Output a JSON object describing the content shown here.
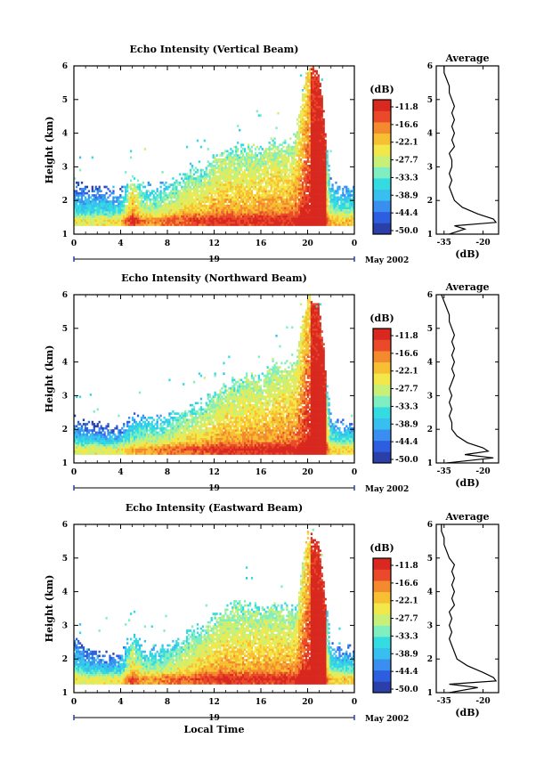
{
  "colors": [
    "#2a3fa8",
    "#2e5ee0",
    "#3a8ef0",
    "#37c0ef",
    "#34dbe0",
    "#7feec0",
    "#c8f078",
    "#f3e84a",
    "#f7c033",
    "#f38a2e",
    "#eb4a2a",
    "#d8281f"
  ],
  "colorbar": {
    "unit": "(dB)",
    "ticks": [
      "-11.8",
      "-16.6",
      "-22.1",
      "-27.7",
      "-33.3",
      "-38.9",
      "-44.4",
      "-50.0"
    ],
    "range": [
      -50.0,
      -11.8
    ]
  },
  "date_label": "May 2002",
  "day_label": "19",
  "xlabel_bottom": "Local Time",
  "ylabel": "Height (km)",
  "x_ticks": [
    "0",
    "4",
    "8",
    "12",
    "16",
    "20",
    "0"
  ],
  "y_ticks": [
    "1",
    "2",
    "3",
    "4",
    "5",
    "6"
  ],
  "profile_title": "Average",
  "profile_xlabel": "(dB)",
  "profile_x_ticks": [
    "-35",
    "-20"
  ],
  "chart_data": [
    {
      "type": "heatmap",
      "title": "Echo Intensity (Vertical Beam)",
      "xlabel": "",
      "ylabel": "Height (km)",
      "xlim": [
        0,
        24
      ],
      "ylim": [
        1,
        6
      ],
      "x": [
        0,
        1,
        2,
        3,
        4,
        5,
        6,
        7,
        8,
        9,
        10,
        11,
        12,
        13,
        14,
        15,
        16,
        17,
        18,
        19,
        20,
        21,
        22,
        23
      ],
      "echo_top_km": [
        2.4,
        2.3,
        2.3,
        2.2,
        2.2,
        2.5,
        2.4,
        2.3,
        2.4,
        2.6,
        2.9,
        2.8,
        3.2,
        3.4,
        3.5,
        3.6,
        3.4,
        3.8,
        3.6,
        3.9,
        6.0,
        5.8,
        2.4,
        2.3
      ],
      "peak_dB": [
        -30,
        -31,
        -30,
        -30,
        -29,
        -16,
        -24,
        -24,
        -22,
        -21,
        -20,
        -20,
        -18,
        -18,
        -19,
        -19,
        -18,
        -18,
        -18,
        -17,
        -11.8,
        -12,
        -26,
        -27
      ],
      "profile": {
        "title": "Average",
        "xlabel": "(dB)",
        "xlim": [
          -38,
          -14
        ],
        "heights_km": [
          1.0,
          1.15,
          1.25,
          1.35,
          1.45,
          1.6,
          1.8,
          2.0,
          2.2,
          2.4,
          2.6,
          2.8,
          3.0,
          3.2,
          3.4,
          3.6,
          3.8,
          4.0,
          4.2,
          4.4,
          4.6,
          4.8,
          5.0,
          5.2,
          5.4,
          5.6,
          5.8,
          6.0
        ],
        "values_dB": [
          -33,
          -27,
          -31,
          -15,
          -16,
          -22,
          -28,
          -31,
          -32,
          -33,
          -32,
          -33,
          -32,
          -32,
          -33,
          -31,
          -32,
          -31,
          -32,
          -31,
          -32,
          -31,
          -32,
          -33,
          -33,
          -34,
          -35,
          -35
        ]
      }
    },
    {
      "type": "heatmap",
      "title": "Echo Intensity (Northward Beam)",
      "xlabel": "",
      "ylabel": "Height (km)",
      "xlim": [
        0,
        24
      ],
      "ylim": [
        1,
        6
      ],
      "x": [
        0,
        1,
        2,
        3,
        4,
        5,
        6,
        7,
        8,
        9,
        10,
        11,
        12,
        13,
        14,
        15,
        16,
        17,
        18,
        19,
        20,
        21,
        22,
        23
      ],
      "echo_top_km": [
        2.2,
        2.1,
        2.0,
        2.0,
        2.0,
        2.3,
        2.3,
        2.2,
        2.3,
        2.5,
        2.6,
        2.7,
        3.0,
        3.2,
        3.4,
        3.6,
        3.5,
        3.9,
        3.8,
        4.0,
        6.0,
        5.7,
        2.2,
        2.1
      ],
      "peak_dB": [
        -30,
        -31,
        -30,
        -31,
        -30,
        -26,
        -25,
        -24,
        -23,
        -22,
        -21,
        -20,
        -19,
        -18,
        -19,
        -18,
        -18,
        -18,
        -17,
        -17,
        -11.8,
        -12,
        -27,
        -28
      ],
      "profile": {
        "title": "Average",
        "xlabel": "(dB)",
        "xlim": [
          -38,
          -14
        ],
        "heights_km": [
          1.0,
          1.15,
          1.25,
          1.35,
          1.45,
          1.6,
          1.8,
          2.0,
          2.2,
          2.4,
          2.6,
          2.8,
          3.0,
          3.2,
          3.4,
          3.6,
          3.8,
          4.0,
          4.2,
          4.4,
          4.6,
          4.8,
          5.0,
          5.2,
          5.4,
          5.6,
          5.8,
          6.0
        ],
        "values_dB": [
          -34,
          -16,
          -27,
          -18,
          -20,
          -26,
          -30,
          -32,
          -32,
          -33,
          -32,
          -33,
          -32,
          -33,
          -32,
          -31,
          -32,
          -31,
          -32,
          -31,
          -32,
          -31,
          -32,
          -33,
          -33,
          -34,
          -35,
          -36
        ]
      }
    },
    {
      "type": "heatmap",
      "title": "Echo Intensity (Eastward Beam)",
      "xlabel": "Local Time",
      "ylabel": "Height (km)",
      "xlim": [
        0,
        24
      ],
      "ylim": [
        1,
        6
      ],
      "x": [
        0,
        1,
        2,
        3,
        4,
        5,
        6,
        7,
        8,
        9,
        10,
        11,
        12,
        13,
        14,
        15,
        16,
        17,
        18,
        19,
        20,
        21,
        22,
        23
      ],
      "echo_top_km": [
        2.5,
        2.3,
        2.1,
        2.0,
        2.1,
        2.6,
        2.3,
        2.2,
        2.3,
        2.5,
        2.8,
        2.9,
        3.2,
        3.4,
        3.6,
        3.5,
        3.4,
        3.6,
        3.5,
        3.4,
        5.7,
        5.3,
        2.3,
        2.2
      ],
      "peak_dB": [
        -30,
        -31,
        -30,
        -30,
        -30,
        -20,
        -25,
        -24,
        -23,
        -22,
        -21,
        -20,
        -19,
        -18,
        -19,
        -19,
        -18,
        -19,
        -18,
        -18,
        -11.8,
        -12,
        -27,
        -28
      ],
      "profile": {
        "title": "Average",
        "xlabel": "(dB)",
        "xlim": [
          -38,
          -14
        ],
        "heights_km": [
          1.0,
          1.15,
          1.25,
          1.35,
          1.45,
          1.6,
          1.8,
          2.0,
          2.2,
          2.4,
          2.6,
          2.8,
          3.0,
          3.2,
          3.4,
          3.6,
          3.8,
          4.0,
          4.2,
          4.4,
          4.6,
          4.8,
          5.0,
          5.2,
          5.4,
          5.6,
          5.8,
          6.0
        ],
        "values_dB": [
          -33,
          -22,
          -33,
          -15,
          -16,
          -20,
          -26,
          -30,
          -31,
          -32,
          -33,
          -32,
          -33,
          -32,
          -33,
          -31,
          -32,
          -31,
          -32,
          -31,
          -32,
          -31,
          -33,
          -34,
          -35,
          -35,
          -36,
          -36
        ]
      }
    }
  ]
}
